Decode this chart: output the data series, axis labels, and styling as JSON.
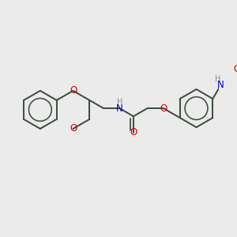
{
  "bg_color": "#ebebeb",
  "bond_color": "#3a4a3a",
  "o_color": "#cc0000",
  "n_color": "#0000cc",
  "h_color": "#888888",
  "lw": 1.4,
  "lw_double": 1.2,
  "font_size": 8.5,
  "xlim": [
    0,
    300
  ],
  "ylim": [
    0,
    300
  ]
}
